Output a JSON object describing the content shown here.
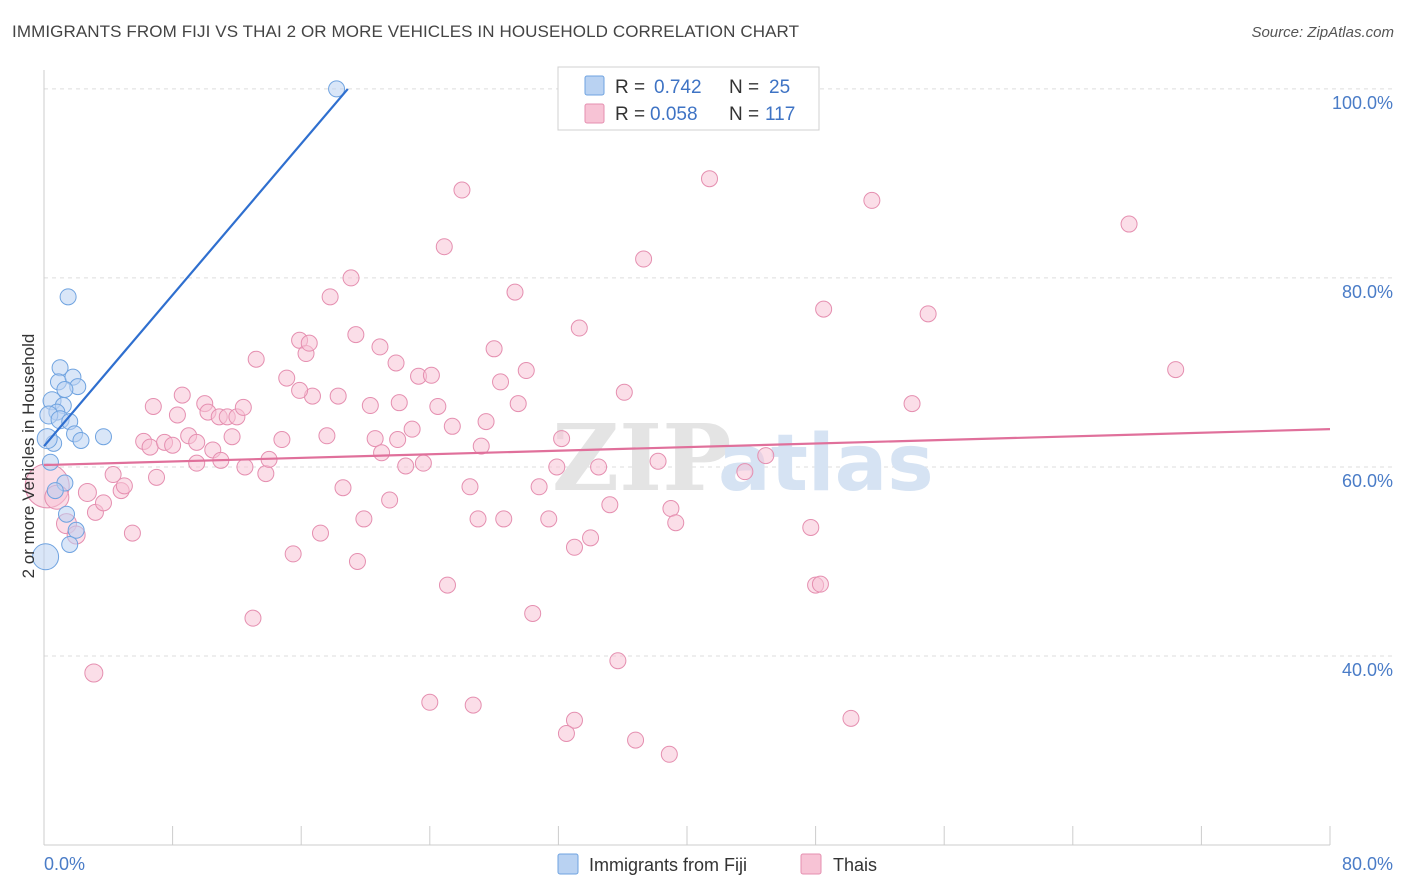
{
  "title": "IMMIGRANTS FROM FIJI VS THAI 2 OR MORE VEHICLES IN HOUSEHOLD CORRELATION CHART",
  "source": "Source: ZipAtlas.com",
  "watermark": {
    "zip": "ZIP",
    "atlas": "atlas"
  },
  "colors": {
    "fiji": "#6fa3e0",
    "fiji_fill": "#b9d2f2",
    "fiji_line": "#2f6fcf",
    "thai": "#e58fb0",
    "thai_fill": "#f7c3d5",
    "thai_line": "#e0709b",
    "axis_label": "#4a7cc7",
    "grid": "#dddddd"
  },
  "legend": {
    "r_label": "R =",
    "n_label": "N =",
    "fiji": {
      "r": "0.742",
      "n": "25"
    },
    "thai": {
      "r": "0.058",
      "n": "117"
    }
  },
  "chart_data": {
    "type": "scatter",
    "ylabel": "2 or more Vehicles in Household",
    "xlim": [
      0,
      80
    ],
    "ylim": [
      20,
      102
    ],
    "x_ticks": [
      {
        "value": 0,
        "label": "0.0%"
      },
      {
        "value": 80,
        "label": "80.0%"
      }
    ],
    "y_ticks": [
      {
        "value": 100,
        "label": "100.0%"
      },
      {
        "value": 80,
        "label": "80.0%"
      },
      {
        "value": 60,
        "label": "60.0%"
      },
      {
        "value": 40,
        "label": "40.0%"
      }
    ],
    "grid": true,
    "legend_position": "top-center",
    "series": [
      {
        "name": "Immigrants from Fiji",
        "color_key": "fiji",
        "trend": {
          "x": [
            0.0,
            18.9
          ],
          "y": [
            62.2,
            100.0
          ]
        },
        "points": [
          [
            18.2,
            100.0,
            8
          ],
          [
            1.5,
            78.0,
            8
          ],
          [
            1.0,
            70.5,
            8
          ],
          [
            0.9,
            69.0,
            8
          ],
          [
            1.8,
            69.5,
            8
          ],
          [
            2.1,
            68.5,
            8
          ],
          [
            1.3,
            68.2,
            8
          ],
          [
            0.5,
            67.0,
            9
          ],
          [
            1.2,
            66.5,
            8
          ],
          [
            0.8,
            65.8,
            8
          ],
          [
            0.3,
            65.5,
            9
          ],
          [
            1.0,
            65.0,
            9
          ],
          [
            1.6,
            64.8,
            8
          ],
          [
            3.7,
            63.2,
            8
          ],
          [
            1.9,
            63.5,
            8
          ],
          [
            2.3,
            62.8,
            8
          ],
          [
            0.6,
            62.5,
            8
          ],
          [
            0.2,
            63.0,
            10
          ],
          [
            1.3,
            58.3,
            8
          ],
          [
            1.4,
            55.0,
            8
          ],
          [
            2.0,
            53.3,
            8
          ],
          [
            1.6,
            51.8,
            8
          ],
          [
            0.1,
            50.5,
            13
          ],
          [
            0.7,
            57.5,
            8
          ],
          [
            0.4,
            60.5,
            8
          ]
        ]
      },
      {
        "name": "Thais",
        "color_key": "thai",
        "trend": {
          "x": [
            0.0,
            80.0
          ],
          "y": [
            60.2,
            64.0
          ]
        },
        "points": [
          [
            0.2,
            58.0,
            22
          ],
          [
            0.8,
            56.8,
            12
          ],
          [
            1.4,
            54.0,
            10
          ],
          [
            2.0,
            52.8,
            9
          ],
          [
            2.7,
            57.3,
            9
          ],
          [
            3.2,
            55.2,
            8
          ],
          [
            3.7,
            56.2,
            8
          ],
          [
            4.3,
            59.2,
            8
          ],
          [
            4.8,
            57.5,
            8
          ],
          [
            5.5,
            53.0,
            8
          ],
          [
            6.2,
            62.7,
            8
          ],
          [
            6.6,
            62.1,
            8
          ],
          [
            6.8,
            66.4,
            8
          ],
          [
            7.0,
            58.9,
            8
          ],
          [
            7.5,
            62.6,
            8
          ],
          [
            8.0,
            62.3,
            8
          ],
          [
            8.3,
            65.5,
            8
          ],
          [
            8.6,
            67.6,
            8
          ],
          [
            9.0,
            63.3,
            8
          ],
          [
            9.5,
            60.4,
            8
          ],
          [
            10.0,
            66.7,
            8
          ],
          [
            10.2,
            65.8,
            8
          ],
          [
            10.5,
            61.8,
            8
          ],
          [
            10.9,
            65.3,
            8
          ],
          [
            11.4,
            65.3,
            8
          ],
          [
            11.7,
            63.2,
            8
          ],
          [
            12.0,
            65.3,
            8
          ],
          [
            12.4,
            66.3,
            8
          ],
          [
            12.5,
            60.0,
            8
          ],
          [
            13.2,
            71.4,
            8
          ],
          [
            13.8,
            59.3,
            8
          ],
          [
            14.0,
            60.8,
            8
          ],
          [
            14.8,
            62.9,
            8
          ],
          [
            15.1,
            69.4,
            8
          ],
          [
            15.5,
            50.8,
            8
          ],
          [
            15.9,
            73.4,
            8
          ],
          [
            16.3,
            72.0,
            8
          ],
          [
            16.5,
            73.1,
            8
          ],
          [
            16.7,
            67.5,
            8
          ],
          [
            17.2,
            53.0,
            8
          ],
          [
            17.6,
            63.3,
            8
          ],
          [
            17.8,
            78.0,
            8
          ],
          [
            18.3,
            67.5,
            8
          ],
          [
            18.6,
            57.8,
            8
          ],
          [
            19.1,
            80.0,
            8
          ],
          [
            19.4,
            74.0,
            8
          ],
          [
            19.5,
            50.0,
            8
          ],
          [
            19.9,
            54.5,
            8
          ],
          [
            20.3,
            66.5,
            8
          ],
          [
            20.6,
            63.0,
            8
          ],
          [
            20.9,
            72.7,
            8
          ],
          [
            21.0,
            61.5,
            8
          ],
          [
            21.5,
            56.5,
            8
          ],
          [
            21.9,
            71.0,
            8
          ],
          [
            22.1,
            66.8,
            8
          ],
          [
            22.5,
            60.1,
            8
          ],
          [
            22.9,
            64.0,
            8
          ],
          [
            23.3,
            69.6,
            8
          ],
          [
            23.6,
            60.4,
            8
          ],
          [
            24.1,
            69.7,
            8
          ],
          [
            24.5,
            66.4,
            8
          ],
          [
            24.9,
            83.3,
            8
          ],
          [
            25.1,
            47.5,
            8
          ],
          [
            25.4,
            64.3,
            8
          ],
          [
            26.0,
            89.3,
            8
          ],
          [
            26.5,
            57.9,
            8
          ],
          [
            27.0,
            54.5,
            8
          ],
          [
            27.5,
            64.8,
            8
          ],
          [
            28.0,
            72.5,
            8
          ],
          [
            28.4,
            69.0,
            8
          ],
          [
            28.6,
            54.5,
            8
          ],
          [
            29.3,
            78.5,
            8
          ],
          [
            29.5,
            66.7,
            8
          ],
          [
            30.0,
            70.2,
            8
          ],
          [
            30.4,
            44.5,
            8
          ],
          [
            30.8,
            57.9,
            8
          ],
          [
            31.4,
            54.5,
            8
          ],
          [
            31.9,
            60.0,
            8
          ],
          [
            32.2,
            63.0,
            8
          ],
          [
            33.0,
            51.5,
            8
          ],
          [
            33.3,
            74.7,
            8
          ],
          [
            34.0,
            52.5,
            8
          ],
          [
            34.5,
            60.0,
            8
          ],
          [
            35.2,
            56.0,
            8
          ],
          [
            35.7,
            39.5,
            8
          ],
          [
            36.1,
            67.9,
            8
          ],
          [
            37.3,
            82.0,
            8
          ],
          [
            38.2,
            60.6,
            8
          ],
          [
            39.0,
            55.6,
            8
          ],
          [
            39.3,
            54.1,
            8
          ],
          [
            41.4,
            90.5,
            8
          ],
          [
            43.6,
            59.5,
            8
          ],
          [
            44.9,
            61.2,
            8
          ],
          [
            47.7,
            53.6,
            8
          ],
          [
            48.0,
            47.5,
            8
          ],
          [
            48.3,
            47.6,
            8
          ],
          [
            48.5,
            76.7,
            8
          ],
          [
            51.5,
            88.2,
            8
          ],
          [
            54.0,
            66.7,
            8
          ],
          [
            55.0,
            76.2,
            8
          ],
          [
            67.5,
            85.7,
            8
          ],
          [
            70.4,
            70.3,
            8
          ],
          [
            13.0,
            44.0,
            8
          ],
          [
            3.1,
            38.2,
            9
          ],
          [
            24.0,
            35.1,
            8
          ],
          [
            26.7,
            34.8,
            8
          ],
          [
            33.0,
            33.2,
            8
          ],
          [
            32.5,
            31.8,
            8
          ],
          [
            36.8,
            31.1,
            8
          ],
          [
            38.9,
            29.6,
            8
          ],
          [
            50.2,
            33.4,
            8
          ],
          [
            9.5,
            62.6,
            8
          ],
          [
            5.0,
            58.0,
            8
          ],
          [
            11.0,
            60.7,
            8
          ],
          [
            22.0,
            62.9,
            8
          ],
          [
            27.2,
            62.2,
            8
          ],
          [
            15.9,
            68.1,
            8
          ]
        ]
      }
    ]
  },
  "bottom_legend": [
    {
      "label": "Immigrants from Fiji",
      "color_key": "fiji"
    },
    {
      "label": "Thais",
      "color_key": "thai"
    }
  ]
}
